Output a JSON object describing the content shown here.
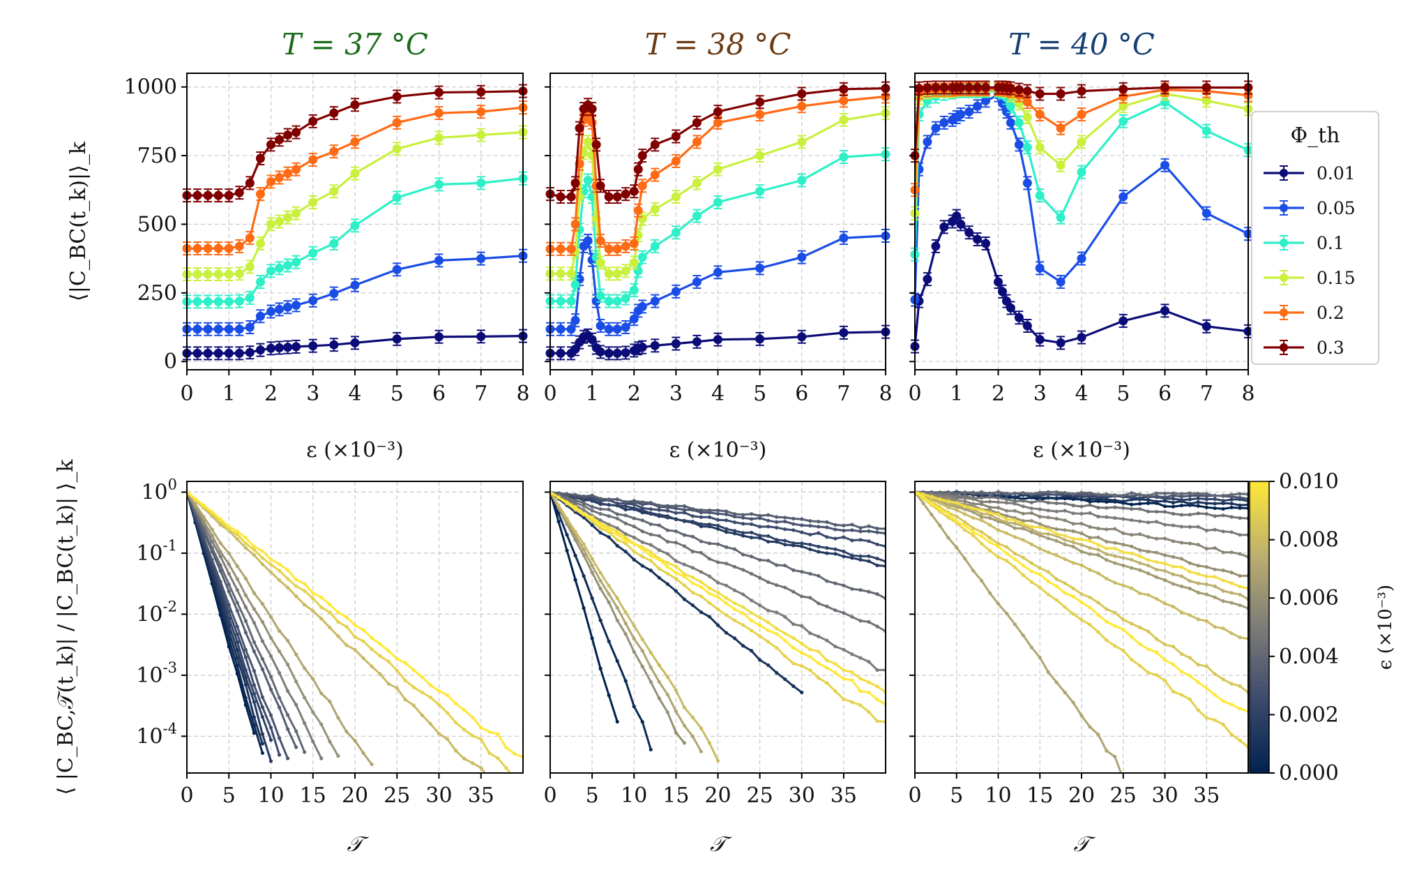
{
  "chart_data": [
    {
      "type": "line",
      "title": "T = 37 °C",
      "title_color": "#1b6b1b",
      "xlabel": "ε (×10⁻³)",
      "ylabel": "⟨|C_BC(t_k)|⟩_k",
      "xlim": [
        0,
        8
      ],
      "ylim": [
        -30,
        1050
      ],
      "xticks": [
        "0",
        "1",
        "2",
        "3",
        "4",
        "5",
        "6",
        "7",
        "8"
      ],
      "yticks": [
        "0",
        "250",
        "500",
        "750",
        "1000"
      ],
      "grid": true,
      "x": [
        0,
        0.25,
        0.5,
        0.75,
        1.0,
        1.25,
        1.5,
        1.75,
        2.0,
        2.2,
        2.4,
        2.6,
        3.0,
        3.5,
        4.0,
        5.0,
        6.0,
        7.0,
        8.0
      ],
      "series": [
        {
          "name": "0.01",
          "color": "#0c0c78",
          "values": [
            30,
            30,
            30,
            30,
            30,
            30,
            33,
            42,
            48,
            50,
            52,
            54,
            57,
            61,
            68,
            82,
            90,
            91,
            93
          ]
        },
        {
          "name": "0.05",
          "color": "#1a4de6",
          "values": [
            118,
            118,
            118,
            118,
            118,
            118,
            125,
            165,
            182,
            190,
            198,
            205,
            222,
            248,
            278,
            335,
            368,
            375,
            385
          ]
        },
        {
          "name": "0.1",
          "color": "#2ef0c8",
          "values": [
            218,
            218,
            218,
            218,
            218,
            220,
            232,
            290,
            330,
            340,
            350,
            362,
            395,
            430,
            495,
            597,
            645,
            650,
            667
          ]
        },
        {
          "name": "0.15",
          "color": "#c8f03c",
          "values": [
            318,
            318,
            318,
            318,
            318,
            320,
            345,
            430,
            500,
            510,
            525,
            540,
            580,
            620,
            685,
            775,
            815,
            825,
            835
          ]
        },
        {
          "name": "0.2",
          "color": "#ff6a14",
          "values": [
            412,
            412,
            412,
            412,
            412,
            420,
            450,
            610,
            655,
            670,
            685,
            700,
            735,
            765,
            800,
            870,
            905,
            910,
            925
          ]
        },
        {
          "name": "0.3",
          "color": "#800000",
          "values": [
            605,
            605,
            605,
            605,
            605,
            615,
            650,
            740,
            790,
            808,
            825,
            835,
            875,
            905,
            935,
            965,
            980,
            982,
            985
          ]
        }
      ]
    },
    {
      "type": "line",
      "title": "T = 38 °C",
      "title_color": "#6b3a12",
      "xlabel": "ε (×10⁻³)",
      "xlim": [
        0,
        8
      ],
      "ylim": [
        -30,
        1050
      ],
      "xticks": [
        "0",
        "1",
        "2",
        "3",
        "4",
        "5",
        "6",
        "7",
        "8"
      ],
      "grid": true,
      "x": [
        0,
        0.25,
        0.5,
        0.6,
        0.7,
        0.8,
        0.9,
        1.0,
        1.1,
        1.2,
        1.4,
        1.6,
        1.8,
        2.0,
        2.1,
        2.2,
        2.5,
        3.0,
        3.5,
        4.0,
        5.0,
        6.0,
        7.0,
        8.0
      ],
      "series": [
        {
          "values": [
            30,
            30,
            30,
            45,
            70,
            90,
            95,
            80,
            50,
            35,
            30,
            30,
            32,
            40,
            48,
            52,
            58,
            65,
            72,
            80,
            82,
            90,
            105,
            108
          ]
        },
        {
          "values": [
            118,
            118,
            118,
            150,
            300,
            420,
            440,
            370,
            220,
            130,
            118,
            118,
            125,
            155,
            185,
            200,
            220,
            255,
            290,
            325,
            340,
            380,
            450,
            458
          ]
        },
        {
          "values": [
            220,
            220,
            220,
            280,
            480,
            620,
            660,
            600,
            380,
            240,
            220,
            220,
            230,
            260,
            330,
            380,
            420,
            470,
            530,
            580,
            620,
            660,
            745,
            755
          ]
        },
        {
          "values": [
            320,
            320,
            320,
            400,
            600,
            760,
            800,
            750,
            520,
            360,
            320,
            320,
            330,
            360,
            460,
            520,
            555,
            600,
            650,
            700,
            750,
            800,
            880,
            905
          ]
        },
        {
          "values": [
            410,
            410,
            410,
            500,
            720,
            880,
            900,
            870,
            640,
            440,
            410,
            410,
            420,
            430,
            550,
            640,
            680,
            730,
            800,
            870,
            900,
            930,
            950,
            965
          ]
        },
        {
          "values": [
            610,
            600,
            600,
            650,
            850,
            920,
            935,
            920,
            790,
            640,
            600,
            600,
            610,
            620,
            700,
            750,
            790,
            820,
            870,
            910,
            945,
            975,
            992,
            995
          ]
        }
      ]
    },
    {
      "type": "line",
      "title": "T = 40 °C",
      "title_color": "#173f73",
      "xlabel": "ε (×10⁻³)",
      "xlim": [
        0,
        8
      ],
      "ylim": [
        -30,
        1050
      ],
      "xticks": [
        "0",
        "1",
        "2",
        "3",
        "4",
        "5",
        "6",
        "7",
        "8"
      ],
      "grid": true,
      "x": [
        0,
        0.1,
        0.3,
        0.5,
        0.7,
        0.9,
        1.0,
        1.1,
        1.3,
        1.5,
        1.7,
        2.0,
        2.1,
        2.2,
        2.3,
        2.5,
        2.7,
        3.0,
        3.5,
        4.0,
        5.0,
        6.0,
        7.0,
        8.0
      ],
      "series": [
        {
          "values": [
            55,
            220,
            300,
            420,
            490,
            510,
            530,
            500,
            470,
            445,
            430,
            290,
            255,
            220,
            195,
            160,
            130,
            80,
            68,
            88,
            148,
            185,
            128,
            110
          ]
        },
        {
          "values": [
            225,
            700,
            800,
            850,
            870,
            880,
            890,
            900,
            910,
            930,
            950,
            970,
            940,
            910,
            870,
            790,
            650,
            340,
            290,
            375,
            600,
            715,
            540,
            465
          ]
        },
        {
          "values": [
            390,
            900,
            950,
            965,
            975,
            980,
            985,
            985,
            985,
            985,
            985,
            985,
            980,
            960,
            930,
            870,
            780,
            605,
            525,
            690,
            875,
            945,
            840,
            770
          ]
        },
        {
          "values": [
            540,
            960,
            980,
            985,
            985,
            985,
            990,
            990,
            990,
            990,
            990,
            990,
            990,
            985,
            970,
            940,
            890,
            780,
            715,
            800,
            930,
            975,
            950,
            920
          ]
        },
        {
          "values": [
            625,
            980,
            988,
            990,
            990,
            990,
            992,
            992,
            992,
            992,
            992,
            992,
            992,
            990,
            985,
            970,
            945,
            900,
            850,
            900,
            965,
            990,
            985,
            970
          ]
        },
        {
          "values": [
            750,
            995,
            997,
            998,
            998,
            998,
            998,
            998,
            998,
            998,
            998,
            998,
            998,
            997,
            995,
            990,
            985,
            975,
            975,
            985,
            992,
            998,
            998,
            998
          ]
        }
      ]
    },
    {
      "type": "line",
      "xlabel": "𝒯",
      "ylabel": "⟨ |C_BC,𝒯(t_k)| / |C_BC(t_k)| ⟩_k",
      "yscale": "log",
      "xlim": [
        0,
        40
      ],
      "ylim": [
        2.5e-05,
        1.5
      ],
      "xticks": [
        "0",
        "5",
        "10",
        "15",
        "20",
        "25",
        "30",
        "35"
      ],
      "yticks": [
        "10^0",
        "10^-1",
        "10^-2",
        "10^-3",
        "10^-4"
      ],
      "grid": true,
      "color_param": "ε",
      "decay_rates_by_epsilon": [
        {
          "eps": 0.0,
          "k": 1.15,
          "end": 8
        },
        {
          "eps": 0.0005,
          "k": 1.1,
          "end": 9
        },
        {
          "eps": 0.001,
          "k": 1.05,
          "end": 9.5
        },
        {
          "eps": 0.0015,
          "k": 1.0,
          "end": 10
        },
        {
          "eps": 0.002,
          "k": 0.95,
          "end": 10.5
        },
        {
          "eps": 0.0025,
          "k": 0.9,
          "end": 11
        },
        {
          "eps": 0.003,
          "k": 0.85,
          "end": 12
        },
        {
          "eps": 0.0035,
          "k": 0.75,
          "end": 13
        },
        {
          "eps": 0.004,
          "k": 0.7,
          "end": 14
        },
        {
          "eps": 0.005,
          "k": 0.62,
          "end": 16
        },
        {
          "eps": 0.006,
          "k": 0.55,
          "end": 18
        },
        {
          "eps": 0.007,
          "k": 0.47,
          "end": 22
        },
        {
          "eps": 0.008,
          "k": 0.3,
          "end": 38
        },
        {
          "eps": 0.009,
          "k": 0.27,
          "end": 39
        },
        {
          "eps": 0.01,
          "k": 0.25,
          "end": 40
        }
      ]
    },
    {
      "type": "line",
      "xlabel": "𝒯",
      "yscale": "log",
      "xlim": [
        0,
        40
      ],
      "ylim": [
        2.5e-05,
        1.5
      ],
      "xticks": [
        "0",
        "5",
        "10",
        "15",
        "20",
        "25",
        "30",
        "35"
      ],
      "grid": true,
      "color_param": "ε",
      "decay_rates_by_epsilon": [
        {
          "eps": 0.0,
          "k": 1.1,
          "end": 8
        },
        {
          "eps": 0.0005,
          "k": 0.8,
          "end": 12
        },
        {
          "eps": 0.001,
          "k": 0.25,
          "end": 30
        },
        {
          "eps": 0.0015,
          "k": 0.07,
          "end": 40
        },
        {
          "eps": 0.002,
          "k": 0.065,
          "end": 40
        },
        {
          "eps": 0.0025,
          "k": 0.05,
          "end": 40
        },
        {
          "eps": 0.003,
          "k": 0.04,
          "end": 40
        },
        {
          "eps": 0.0035,
          "k": 0.035,
          "end": 40
        },
        {
          "eps": 0.004,
          "k": 0.1,
          "end": 40
        },
        {
          "eps": 0.0045,
          "k": 0.13,
          "end": 40
        },
        {
          "eps": 0.005,
          "k": 0.17,
          "end": 40
        },
        {
          "eps": 0.006,
          "k": 0.6,
          "end": 16
        },
        {
          "eps": 0.007,
          "k": 0.55,
          "end": 18
        },
        {
          "eps": 0.008,
          "k": 0.5,
          "end": 20
        },
        {
          "eps": 0.009,
          "k": 0.22,
          "end": 40
        },
        {
          "eps": 0.0095,
          "k": 0.19,
          "end": 40
        },
        {
          "eps": 0.01,
          "k": 0.2,
          "end": 40
        }
      ]
    },
    {
      "type": "line",
      "xlabel": "𝒯",
      "yscale": "log",
      "xlim": [
        0,
        40
      ],
      "ylim": [
        2.5e-05,
        1.5
      ],
      "xticks": [
        "0",
        "5",
        "10",
        "15",
        "20",
        "25",
        "30",
        "35"
      ],
      "grid": true,
      "color_param": "ε",
      "decay_rates_by_epsilon": [
        {
          "eps": 0.0,
          "k": 0.016,
          "end": 40
        },
        {
          "eps": 0.001,
          "k": 0.012,
          "end": 40
        },
        {
          "eps": 0.002,
          "k": 0.008,
          "end": 40
        },
        {
          "eps": 0.003,
          "k": 0.005,
          "end": 40
        },
        {
          "eps": 0.004,
          "k": 0.003,
          "end": 40
        },
        {
          "eps": 0.0045,
          "k": 0.025,
          "end": 40
        },
        {
          "eps": 0.005,
          "k": 0.04,
          "end": 40
        },
        {
          "eps": 0.0055,
          "k": 0.06,
          "end": 40
        },
        {
          "eps": 0.006,
          "k": 0.08,
          "end": 40
        },
        {
          "eps": 0.0065,
          "k": 0.11,
          "end": 40
        },
        {
          "eps": 0.007,
          "k": 0.42,
          "end": 25
        },
        {
          "eps": 0.0075,
          "k": 0.1,
          "end": 40
        },
        {
          "eps": 0.008,
          "k": 0.14,
          "end": 40
        },
        {
          "eps": 0.0085,
          "k": 0.19,
          "end": 40
        },
        {
          "eps": 0.009,
          "k": 0.24,
          "end": 40
        },
        {
          "eps": 0.0095,
          "k": 0.09,
          "end": 40
        },
        {
          "eps": 0.01,
          "k": 0.21,
          "end": 40
        }
      ]
    }
  ],
  "legend": {
    "title": "Φ_th",
    "entries": [
      "0.01",
      "0.05",
      "0.1",
      "0.15",
      "0.2",
      "0.3"
    ],
    "colors": [
      "#0c0c78",
      "#1a4de6",
      "#2ef0c8",
      "#c8f03c",
      "#ff6a14",
      "#800000"
    ],
    "placement": "right of top-right panel"
  },
  "colorbar": {
    "label": "ϵ (×10⁻³)",
    "ticks": [
      "0.000",
      "0.002",
      "0.004",
      "0.006",
      "0.008",
      "0.010"
    ],
    "colormap": [
      "#00224e",
      "#3b496c",
      "#7c7b78",
      "#bcaf6f",
      "#fee838"
    ]
  }
}
